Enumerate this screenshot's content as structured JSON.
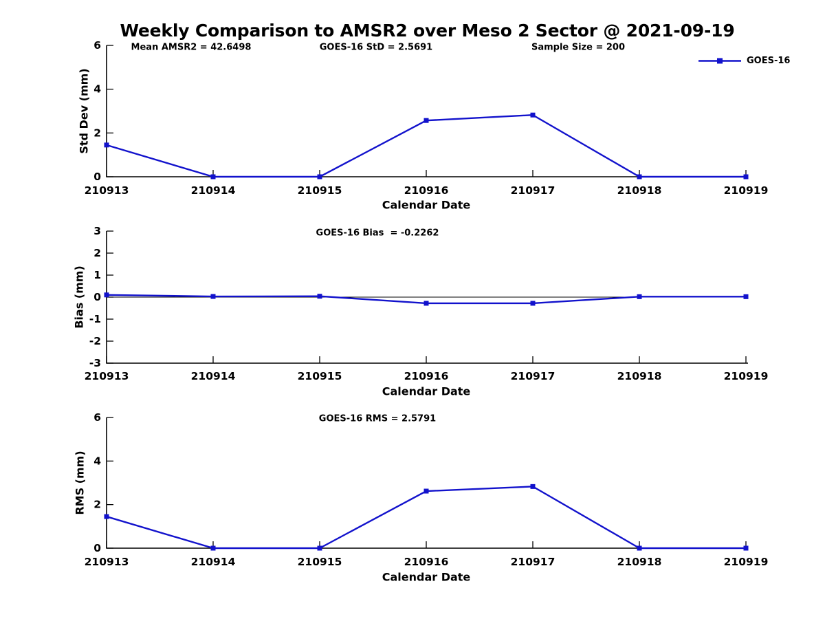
{
  "title": "Weekly Comparison to AMSR2 over Meso 2 Sector @ 2021-09-19",
  "colors": {
    "series": "#1212cc",
    "axis": "#000000",
    "text": "#000000",
    "background": "#ffffff"
  },
  "legend": {
    "label": "GOES-16",
    "marker": "square-icon",
    "position": "top-right"
  },
  "x_axis": {
    "label": "Calendar Date",
    "categories": [
      "210913",
      "210914",
      "210915",
      "210916",
      "210917",
      "210918",
      "210919"
    ]
  },
  "chart_data": [
    {
      "id": "std-dev",
      "type": "line",
      "annotations": [
        "Mean AMSR2 = 42.6498",
        "GOES-16 StD = 2.5691",
        "Sample Size = 200"
      ],
      "ylabel": "Std Dev (mm)",
      "xlabel": "Calendar Date",
      "ylim": [
        0,
        6
      ],
      "yticks": [
        0,
        2,
        4,
        6
      ],
      "grid": false,
      "zero_line": false,
      "categories": [
        "210913",
        "210914",
        "210915",
        "210916",
        "210917",
        "210918",
        "210919"
      ],
      "series": [
        {
          "name": "GOES-16",
          "values": [
            1.45,
            0,
            0,
            2.57,
            2.82,
            0,
            0
          ]
        }
      ]
    },
    {
      "id": "bias",
      "type": "line",
      "annotations": [
        "GOES-16 Bias  = -0.2262"
      ],
      "ylabel": "Bias (mm)",
      "xlabel": "Calendar Date",
      "ylim": [
        -3,
        3
      ],
      "yticks": [
        -3,
        -2,
        -1,
        0,
        1,
        2,
        3
      ],
      "grid": false,
      "zero_line": true,
      "categories": [
        "210913",
        "210914",
        "210915",
        "210916",
        "210917",
        "210918",
        "210919"
      ],
      "series": [
        {
          "name": "GOES-16",
          "values": [
            0.1,
            0.03,
            0.04,
            -0.28,
            -0.28,
            0.02,
            0.02
          ]
        }
      ]
    },
    {
      "id": "rms",
      "type": "line",
      "annotations": [
        "GOES-16 RMS = 2.5791"
      ],
      "ylabel": "RMS (mm)",
      "xlabel": "Calendar Date",
      "ylim": [
        0,
        6
      ],
      "yticks": [
        0,
        2,
        4,
        6
      ],
      "grid": false,
      "zero_line": false,
      "categories": [
        "210913",
        "210914",
        "210915",
        "210916",
        "210917",
        "210918",
        "210919"
      ],
      "series": [
        {
          "name": "GOES-16",
          "values": [
            1.45,
            0,
            0,
            2.62,
            2.83,
            0,
            0
          ]
        }
      ]
    }
  ]
}
